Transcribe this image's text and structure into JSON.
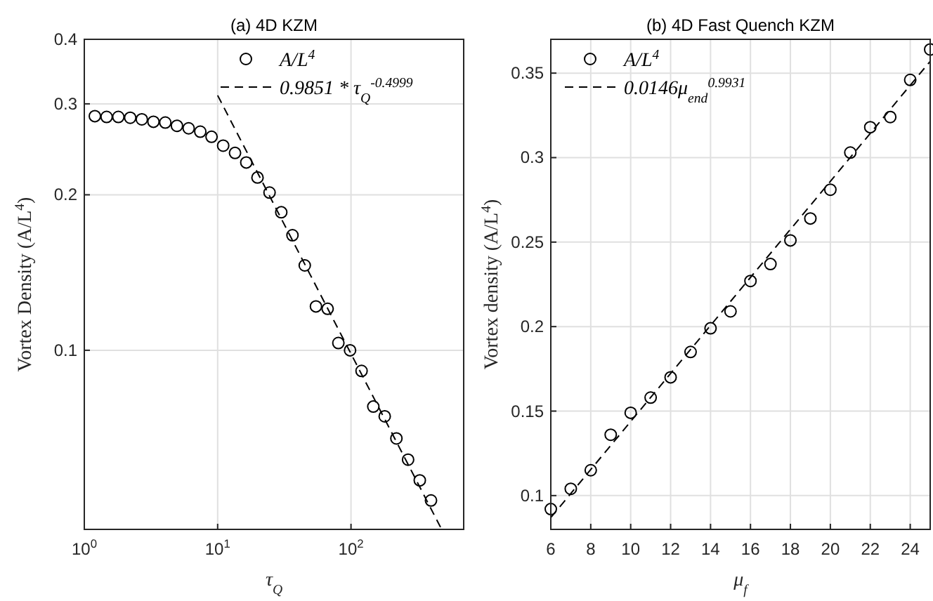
{
  "chart_data": [
    {
      "type": "scatter",
      "title": "(a) 4D KZM",
      "xlabel": "τ$_{Q}$",
      "ylabel": "Vortex Density (A/L$^{4}$)",
      "log": "xy",
      "grid": true,
      "legend": "top right",
      "xlim": [
        1,
        700
      ],
      "ylim": [
        0.045,
        0.4
      ],
      "xticks": [
        {
          "value": 1,
          "label": "10$^{0}$"
        },
        {
          "value": 10,
          "label": "10$^{1}$"
        },
        {
          "value": 100,
          "label": "10$^{2}$"
        }
      ],
      "yticks": [
        0.1,
        0.2,
        0.3,
        0.4
      ],
      "series": [
        {
          "name": "A/L$^{4}$",
          "marker": "circle",
          "color": "#000000",
          "x": [
            1.2,
            1.47,
            1.8,
            2.21,
            2.7,
            3.3,
            4.05,
            4.95,
            6.06,
            7.41,
            9.0,
            11.0,
            13.5,
            16.4,
            19.9,
            24.5,
            30.0,
            36.4,
            45.0,
            54.6,
            66.8,
            80.4,
            98.4,
            120,
            147,
            179,
            219,
            268,
            328,
            398
          ],
          "values": [
            0.284,
            0.283,
            0.283,
            0.282,
            0.28,
            0.277,
            0.276,
            0.272,
            0.269,
            0.265,
            0.259,
            0.249,
            0.241,
            0.231,
            0.216,
            0.202,
            0.185,
            0.167,
            0.146,
            0.1216,
            0.1203,
            0.1033,
            0.1,
            0.0912,
            0.0778,
            0.0745,
            0.0675,
            0.0614,
            0.056,
            0.0512
          ]
        },
        {
          "name": "0.9851 * τ$_{Q}$$^{-0.4999}$",
          "type": "line",
          "line_style": "dashed",
          "color": "#000000",
          "x": [
            10,
            470
          ],
          "values": [
            0.3115,
            0.0454
          ]
        }
      ]
    },
    {
      "type": "scatter",
      "title": "(b) 4D Fast Quench KZM",
      "xlabel": "μ$_{f}$",
      "ylabel": "Vortex density (A/L$^{4}$)",
      "grid": true,
      "legend": "top left",
      "xlim": [
        6,
        25
      ],
      "ylim": [
        0.08,
        0.37
      ],
      "xticks": [
        6,
        8,
        10,
        12,
        14,
        16,
        18,
        20,
        22,
        24
      ],
      "yticks": [
        0.1,
        0.15,
        0.2,
        0.25,
        0.3,
        0.35
      ],
      "series": [
        {
          "name": "A/L$^{4}$",
          "marker": "circle",
          "color": "#000000",
          "x": [
            6,
            7,
            8,
            9,
            10,
            11,
            12,
            13,
            14,
            15,
            16,
            17,
            18,
            19,
            20,
            21,
            22,
            23,
            24,
            25
          ],
          "values": [
            0.092,
            0.104,
            0.115,
            0.136,
            0.149,
            0.158,
            0.17,
            0.185,
            0.199,
            0.209,
            0.227,
            0.237,
            0.251,
            0.264,
            0.281,
            0.303,
            0.318,
            0.324,
            0.346,
            0.364
          ]
        },
        {
          "name": "0.0146μ$_{end}$$^{0.9931}$",
          "type": "line",
          "line_style": "dashed",
          "color": "#000000",
          "x": [
            6,
            25
          ],
          "values": [
            0.087,
            0.357
          ]
        }
      ]
    }
  ]
}
